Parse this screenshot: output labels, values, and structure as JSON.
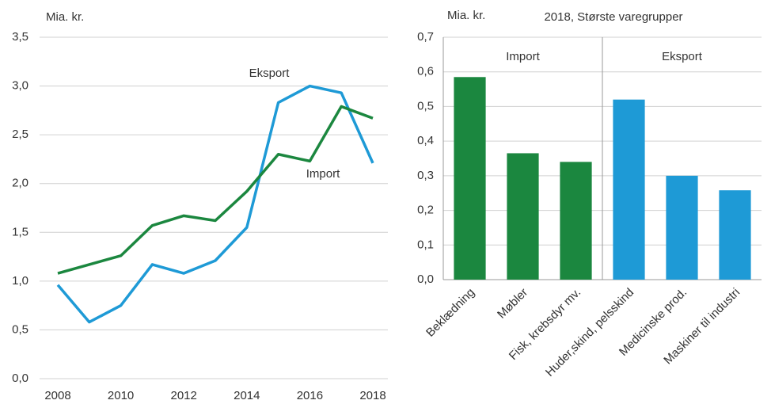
{
  "chart_data": [
    {
      "type": "line",
      "ylabel": "Mia. kr.",
      "x": [
        2008,
        2009,
        2010,
        2011,
        2012,
        2013,
        2014,
        2015,
        2016,
        2017,
        2018
      ],
      "series": [
        {
          "name": "Eksport",
          "color": "#1e9ad6",
          "values": [
            0.96,
            0.58,
            0.75,
            1.17,
            1.08,
            1.21,
            1.55,
            2.83,
            3.0,
            2.93,
            2.21
          ]
        },
        {
          "name": "Import",
          "color": "#1b873f",
          "values": [
            1.08,
            1.17,
            1.26,
            1.57,
            1.67,
            1.62,
            1.92,
            2.3,
            2.23,
            2.79,
            2.67
          ]
        }
      ],
      "xlim": [
        2008,
        2018
      ],
      "xticks": [
        2008,
        2010,
        2012,
        2014,
        2016,
        2018
      ],
      "ylim": [
        0,
        3.5
      ],
      "yticks": [
        {
          "value": 0,
          "label": "0,0"
        },
        {
          "value": 0.5,
          "label": "0,5"
        },
        {
          "value": 1,
          "label": "1,0"
        },
        {
          "value": 1.5,
          "label": "1,5"
        },
        {
          "value": 2,
          "label": "2,0"
        },
        {
          "value": 2.5,
          "label": "2,5"
        },
        {
          "value": 3,
          "label": "3,0"
        },
        {
          "value": 3.5,
          "label": "3,5"
        }
      ],
      "grid": true
    },
    {
      "type": "bar",
      "ylabel": "Mia. kr.",
      "title": "2018, Største varegrupper",
      "categories": [
        "Beklædning",
        "Møbler",
        "Fisk, krebsdyr mv.",
        "Huder,skind, pelsskind",
        "Medicinske prod.",
        "Maskiner til industri"
      ],
      "series": [
        {
          "name": "Import",
          "color": "#1b873f",
          "values": [
            0.585,
            0.365,
            0.34,
            null,
            null,
            null
          ]
        },
        {
          "name": "Eksport",
          "color": "#1e9ad6",
          "values": [
            null,
            null,
            null,
            0.52,
            0.3,
            0.258
          ]
        }
      ],
      "ylim": [
        0,
        0.7
      ],
      "yticks": [
        {
          "value": 0,
          "label": "0,0"
        },
        {
          "value": 0.1,
          "label": "0,1"
        },
        {
          "value": 0.2,
          "label": "0,2"
        },
        {
          "value": 0.3,
          "label": "0,3"
        },
        {
          "value": 0.4,
          "label": "0,4"
        },
        {
          "value": 0.5,
          "label": "0,5"
        },
        {
          "value": 0.6,
          "label": "0,6"
        },
        {
          "value": 0.7,
          "label": "0,7"
        }
      ],
      "grid": true
    }
  ]
}
